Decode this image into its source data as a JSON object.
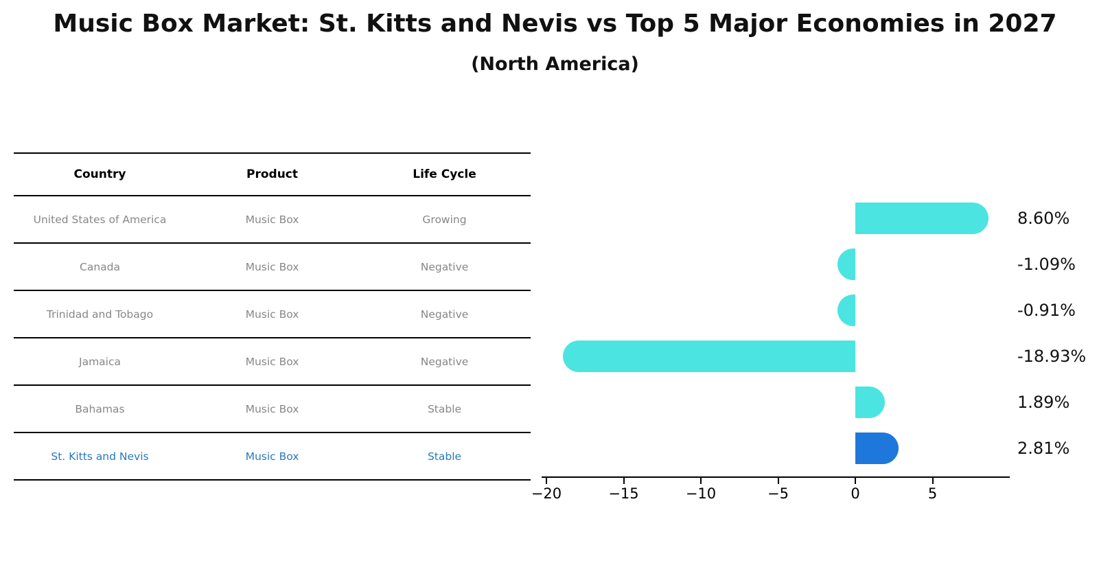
{
  "title": "Music Box Market: St. Kitts and Nevis vs Top 5 Major Economies in 2027",
  "subtitle": "(North America)",
  "table": {
    "columns": [
      "Country",
      "Product",
      "Life Cycle"
    ],
    "rows": [
      {
        "country": "United States of America",
        "product": "Music Box",
        "life_cycle": "Growing",
        "highlight": false
      },
      {
        "country": "Canada",
        "product": "Music Box",
        "life_cycle": "Negative",
        "highlight": false
      },
      {
        "country": "Trinidad and Tobago",
        "product": "Music Box",
        "life_cycle": "Negative",
        "highlight": false
      },
      {
        "country": "Jamaica",
        "product": "Music Box",
        "life_cycle": "Negative",
        "highlight": false
      },
      {
        "country": "Bahamas",
        "product": "Music Box",
        "life_cycle": "Stable",
        "highlight": false
      },
      {
        "country": "St. Kitts and Nevis",
        "product": "Music Box",
        "life_cycle": "Stable",
        "highlight": true
      }
    ]
  },
  "chart_data": {
    "type": "bar",
    "orientation": "horizontal",
    "title": "Music Box Market: St. Kitts and Nevis vs Top 5 Major Economies in 2027 (North America)",
    "categories": [
      "United States of America",
      "Canada",
      "Trinidad and Tobago",
      "Jamaica",
      "Bahamas",
      "St. Kitts and Nevis"
    ],
    "values": [
      8.6,
      -1.09,
      -0.91,
      -18.93,
      1.89,
      2.81
    ],
    "value_labels": [
      "8.60%",
      "-1.09%",
      "-0.91%",
      "-18.93%",
      "1.89%",
      "2.81%"
    ],
    "highlight_index": 5,
    "xticks": [
      -20,
      -15,
      -10,
      -5,
      0,
      5
    ],
    "xtick_labels": [
      "−20",
      "−15",
      "−10",
      "−5",
      "0",
      "5"
    ],
    "xlim": [
      -20.31,
      9.98
    ],
    "grid": false,
    "legend": false
  },
  "colors": {
    "bar": "#4be4e1",
    "highlight_bar": "#1e78dc",
    "highlight_text": "#2679be",
    "row_text": "#878787",
    "axis": "#000000"
  }
}
